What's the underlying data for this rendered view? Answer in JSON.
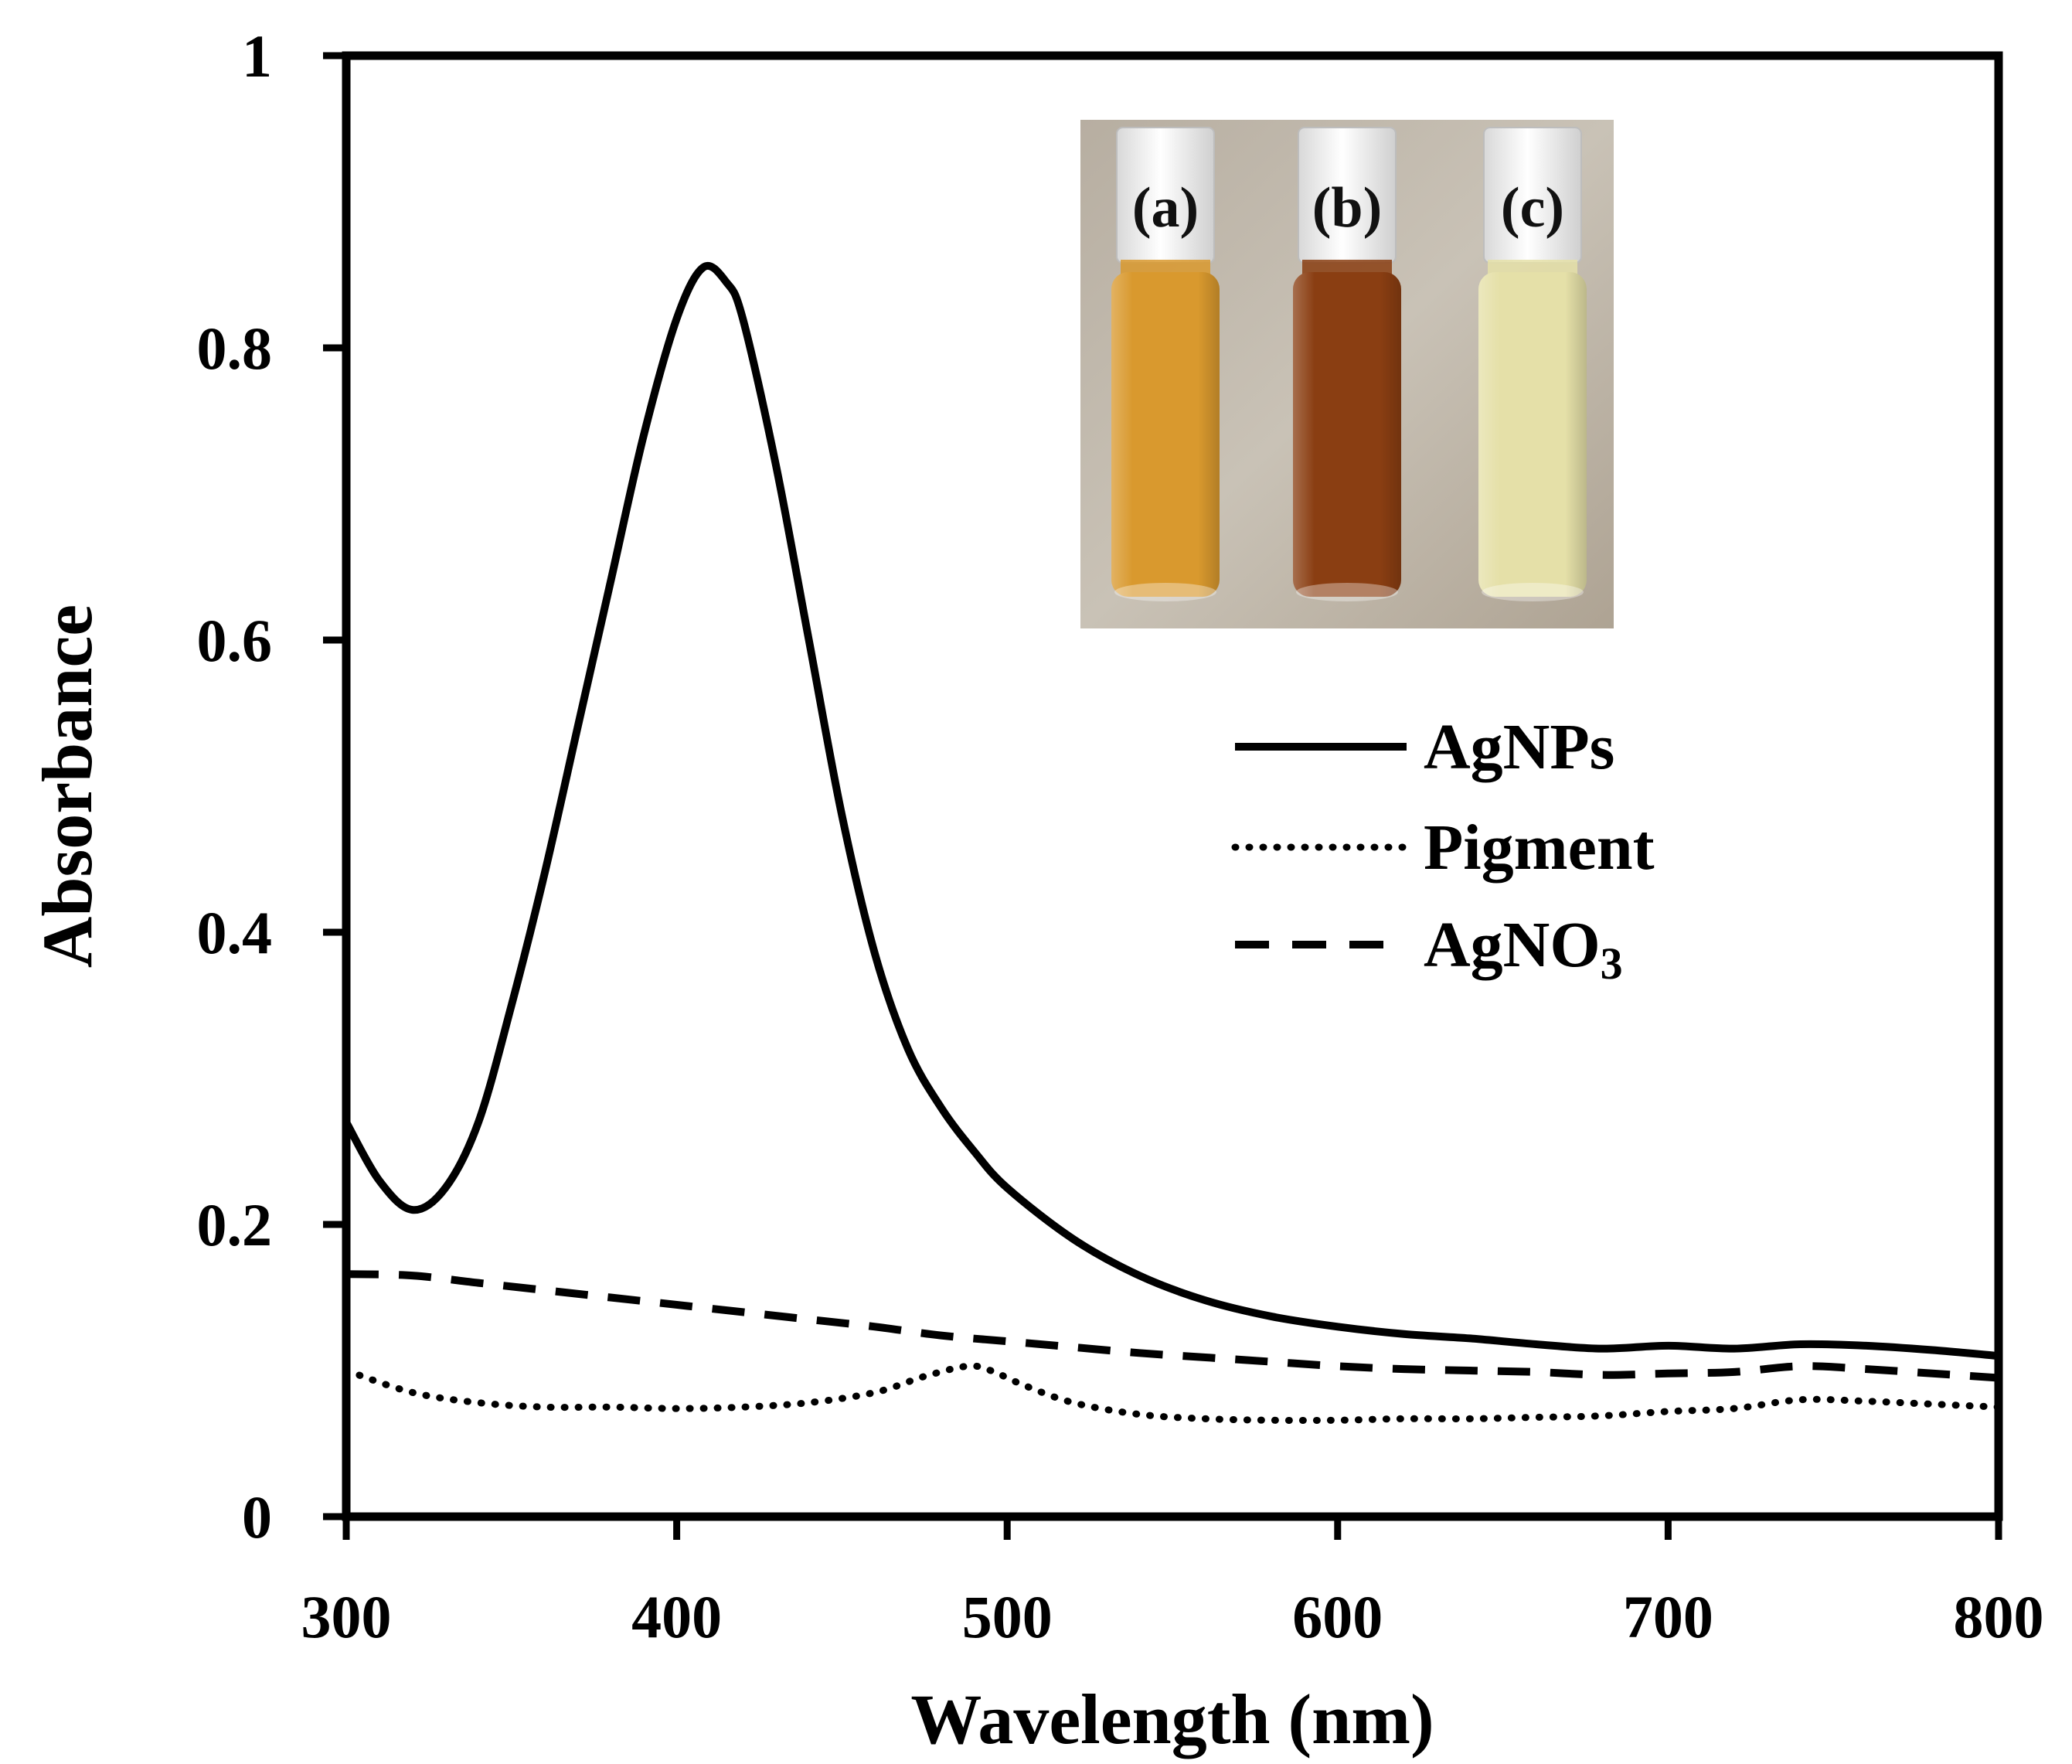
{
  "chart_data": {
    "type": "line",
    "title": "",
    "xlabel": "Wavelength (nm)",
    "ylabel": "Absorbance",
    "xlim": [
      300,
      800
    ],
    "ylim": [
      0,
      1
    ],
    "xticks": [
      "300",
      "400",
      "500",
      "600",
      "700",
      "800"
    ],
    "yticks": [
      "0",
      "0.2",
      "0.4",
      "0.6",
      "0.8",
      "1"
    ],
    "grid": false,
    "legend_position": "right-middle",
    "series": [
      {
        "name": "AgNPs",
        "style": "solid",
        "points": [
          [
            300,
            0.27
          ],
          [
            310,
            0.23
          ],
          [
            320,
            0.21
          ],
          [
            330,
            0.225
          ],
          [
            340,
            0.27
          ],
          [
            350,
            0.35
          ],
          [
            360,
            0.44
          ],
          [
            370,
            0.54
          ],
          [
            380,
            0.64
          ],
          [
            390,
            0.74
          ],
          [
            400,
            0.82
          ],
          [
            408,
            0.855
          ],
          [
            415,
            0.845
          ],
          [
            420,
            0.82
          ],
          [
            430,
            0.72
          ],
          [
            440,
            0.6
          ],
          [
            450,
            0.48
          ],
          [
            460,
            0.385
          ],
          [
            470,
            0.32
          ],
          [
            480,
            0.28
          ],
          [
            490,
            0.25
          ],
          [
            500,
            0.225
          ],
          [
            520,
            0.19
          ],
          [
            540,
            0.165
          ],
          [
            560,
            0.148
          ],
          [
            580,
            0.137
          ],
          [
            600,
            0.13
          ],
          [
            620,
            0.125
          ],
          [
            640,
            0.122
          ],
          [
            660,
            0.118
          ],
          [
            680,
            0.115
          ],
          [
            700,
            0.117
          ],
          [
            720,
            0.115
          ],
          [
            740,
            0.118
          ],
          [
            760,
            0.117
          ],
          [
            780,
            0.114
          ],
          [
            800,
            0.11
          ]
        ]
      },
      {
        "name": "Pigment",
        "style": "dotted",
        "points": [
          [
            300,
            0.1
          ],
          [
            320,
            0.085
          ],
          [
            340,
            0.078
          ],
          [
            360,
            0.075
          ],
          [
            380,
            0.075
          ],
          [
            400,
            0.074
          ],
          [
            420,
            0.075
          ],
          [
            440,
            0.078
          ],
          [
            460,
            0.085
          ],
          [
            475,
            0.096
          ],
          [
            488,
            0.103
          ],
          [
            495,
            0.1
          ],
          [
            505,
            0.09
          ],
          [
            520,
            0.078
          ],
          [
            540,
            0.07
          ],
          [
            560,
            0.067
          ],
          [
            580,
            0.066
          ],
          [
            600,
            0.066
          ],
          [
            620,
            0.067
          ],
          [
            640,
            0.067
          ],
          [
            660,
            0.068
          ],
          [
            680,
            0.069
          ],
          [
            700,
            0.072
          ],
          [
            720,
            0.074
          ],
          [
            740,
            0.08
          ],
          [
            760,
            0.079
          ],
          [
            780,
            0.077
          ],
          [
            800,
            0.075
          ]
        ]
      },
      {
        "name": "AgNO3",
        "style": "dashed",
        "points": [
          [
            300,
            0.166
          ],
          [
            320,
            0.165
          ],
          [
            340,
            0.16
          ],
          [
            360,
            0.155
          ],
          [
            380,
            0.15
          ],
          [
            400,
            0.145
          ],
          [
            420,
            0.14
          ],
          [
            440,
            0.135
          ],
          [
            460,
            0.13
          ],
          [
            480,
            0.124
          ],
          [
            500,
            0.12
          ],
          [
            520,
            0.116
          ],
          [
            540,
            0.112
          ],
          [
            560,
            0.109
          ],
          [
            580,
            0.106
          ],
          [
            600,
            0.103
          ],
          [
            620,
            0.101
          ],
          [
            640,
            0.1
          ],
          [
            660,
            0.099
          ],
          [
            680,
            0.097
          ],
          [
            700,
            0.098
          ],
          [
            720,
            0.099
          ],
          [
            740,
            0.103
          ],
          [
            760,
            0.101
          ],
          [
            780,
            0.098
          ],
          [
            800,
            0.095
          ]
        ]
      }
    ],
    "legend": [
      {
        "label": "AgNPs",
        "style": "solid"
      },
      {
        "label": "Pigment",
        "style": "dotted"
      },
      {
        "label": "AgNO",
        "subscript": "3",
        "style": "dashed"
      }
    ],
    "inset": {
      "vials": [
        {
          "label": "(a)",
          "liquid_color": "#d9992e"
        },
        {
          "label": "(b)",
          "liquid_color": "#8a3e12"
        },
        {
          "label": "(c)",
          "liquid_color": "#e5e0a8"
        }
      ]
    }
  }
}
